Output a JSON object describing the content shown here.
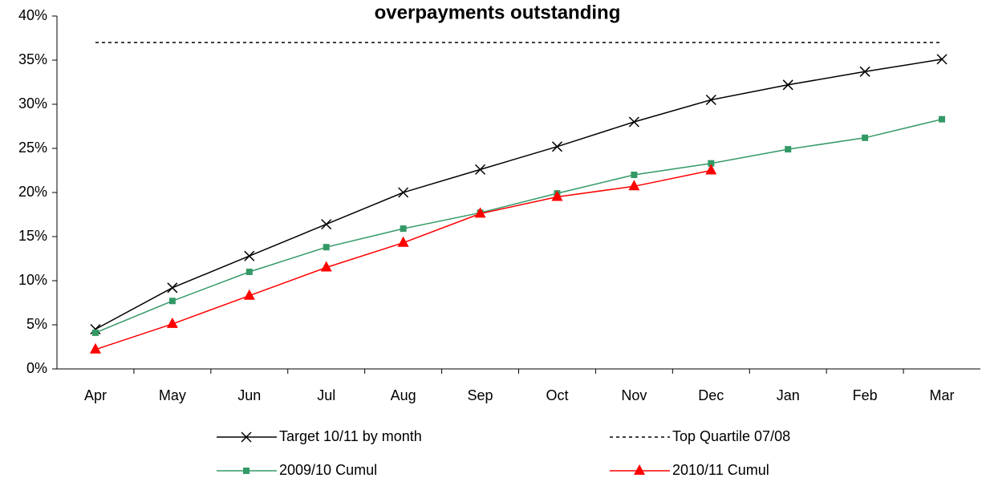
{
  "chart_data": {
    "type": "line",
    "title": "overpayments outstanding",
    "categories": [
      "Apr",
      "May",
      "Jun",
      "Jul",
      "Aug",
      "Sep",
      "Oct",
      "Nov",
      "Dec",
      "Jan",
      "Feb",
      "Mar"
    ],
    "series": [
      {
        "name": "Target 10/11 by month",
        "color": "#000000",
        "marker": "x",
        "values": [
          4.5,
          9.2,
          12.8,
          16.4,
          20.0,
          22.6,
          25.2,
          28.0,
          30.5,
          32.2,
          33.7,
          35.1
        ]
      },
      {
        "name": "Top Quartile 07/08",
        "color": "#000000",
        "dash": true,
        "values": [
          37,
          37,
          37,
          37,
          37,
          37,
          37,
          37,
          37,
          37,
          37,
          37
        ]
      },
      {
        "name": "2009/10 Cumul",
        "color": "#339966",
        "marker": "square",
        "values": [
          4.1,
          7.7,
          11.0,
          13.8,
          15.9,
          17.7,
          19.9,
          22.0,
          23.3,
          24.9,
          26.2,
          28.3
        ]
      },
      {
        "name": "2010/11 Cumul",
        "color": "#ff0000",
        "marker": "triangle",
        "values": [
          2.2,
          5.1,
          8.3,
          11.5,
          14.3,
          17.6,
          19.5,
          20.7,
          22.5,
          null,
          null,
          null
        ]
      }
    ],
    "ylim": [
      0,
      40
    ],
    "yticks": [
      {
        "value": 0,
        "label": "0%"
      },
      {
        "value": 5,
        "label": "5%"
      },
      {
        "value": 10,
        "label": "10%"
      },
      {
        "value": 15,
        "label": "15%"
      },
      {
        "value": 20,
        "label": "20%"
      },
      {
        "value": 25,
        "label": "25%"
      },
      {
        "value": 30,
        "label": "30%"
      },
      {
        "value": 35,
        "label": "35%"
      },
      {
        "value": 40,
        "label": "40%"
      }
    ],
    "grid": false
  }
}
